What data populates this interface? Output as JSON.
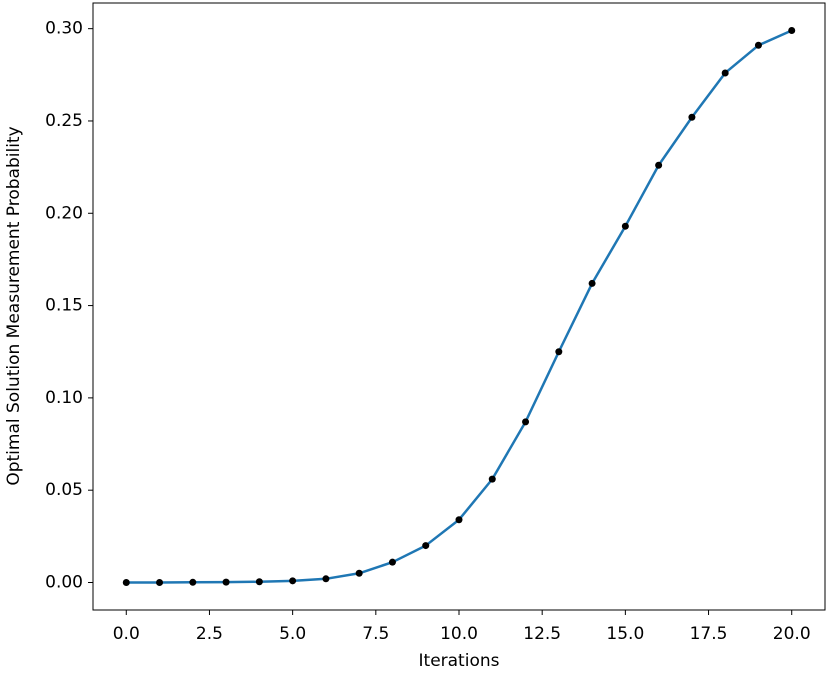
{
  "chart_data": {
    "type": "line",
    "x_label": "Iterations",
    "y_label": "Optimal Solution Measurement Probability",
    "x": [
      0,
      1,
      2,
      3,
      4,
      5,
      6,
      7,
      8,
      9,
      10,
      11,
      12,
      13,
      14,
      15,
      16,
      17,
      18,
      19,
      20
    ],
    "values": [
      0.0,
      0.0,
      0.0001,
      0.0002,
      0.0004,
      0.0009,
      0.002,
      0.005,
      0.011,
      0.02,
      0.034,
      0.056,
      0.087,
      0.125,
      0.162,
      0.193,
      0.226,
      0.252,
      0.276,
      0.291,
      0.299
    ],
    "color": "#1f77b4",
    "marker_color": "#000000",
    "xlim": [
      -1,
      21
    ],
    "ylim": [
      -0.0149,
      0.3139
    ],
    "xticks": [
      {
        "value": 0,
        "label": "0.0"
      },
      2.5,
      {
        "value": 5,
        "label": "5.0"
      },
      7.5,
      {
        "value": 10,
        "label": "10.0"
      },
      12.5,
      {
        "value": 15,
        "label": "15.0"
      },
      17.5,
      {
        "value": 20,
        "label": "20.0"
      }
    ],
    "yticks": [
      {
        "value": 0,
        "label": "0.00"
      },
      0.05,
      {
        "value": 0.1,
        "label": "0.10"
      },
      0.15,
      {
        "value": 0.2,
        "label": "0.20"
      },
      0.25,
      {
        "value": 0.3,
        "label": "0.30"
      }
    ],
    "grid": false
  }
}
